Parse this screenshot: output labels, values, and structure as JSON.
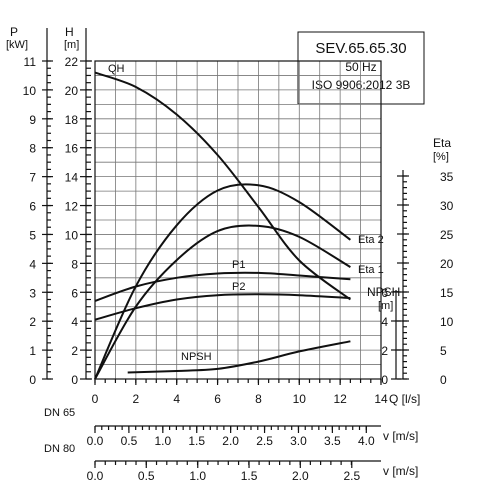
{
  "chart_data": {
    "type": "line",
    "title_box": {
      "model": "SEV.65.65.30",
      "frequency": "50 Hz",
      "standard": "ISO 9906:2012 3B"
    },
    "axes": {
      "x": {
        "label": "Q [l/s]",
        "range": [
          0,
          14
        ],
        "ticks": [
          "0",
          "2",
          "4",
          "6",
          "8",
          "10",
          "12",
          "14"
        ]
      },
      "H": {
        "label": "H",
        "unit": "[m]",
        "range": [
          0,
          22
        ],
        "ticks": [
          "0",
          "2",
          "4",
          "6",
          "8",
          "10",
          "12",
          "14",
          "16",
          "18",
          "20",
          "22"
        ]
      },
      "P": {
        "label": "P",
        "unit": "[kW]",
        "range": [
          0,
          11
        ],
        "ticks": [
          "0",
          "1",
          "2",
          "3",
          "4",
          "5",
          "6",
          "7",
          "8",
          "9",
          "10",
          "11"
        ]
      },
      "Eta": {
        "label": "Eta",
        "unit": "[%]",
        "range": [
          0,
          35
        ],
        "ticks": [
          "0",
          "5",
          "10",
          "15",
          "20",
          "25",
          "30",
          "35"
        ]
      },
      "NPSH": {
        "label": "NPSH",
        "unit": "[m]",
        "range": [
          0,
          6
        ],
        "ticks": [
          "0",
          "2",
          "4",
          "6"
        ]
      }
    },
    "grid": true,
    "series": [
      {
        "name": "QH",
        "axis": "H",
        "label": "QH",
        "x": [
          0,
          2,
          4,
          6,
          8,
          10,
          12.5
        ],
        "y": [
          21.2,
          20.2,
          18.3,
          15.5,
          11.9,
          8.2,
          5.5
        ]
      },
      {
        "name": "Eta 2",
        "axis": "Eta",
        "label": "Eta 2",
        "x": [
          0,
          2,
          4,
          6,
          8,
          10,
          12.5
        ],
        "y": [
          0,
          16,
          26.5,
          32.5,
          33.4,
          30.5,
          24
        ]
      },
      {
        "name": "Eta 1",
        "axis": "Eta",
        "label": "Eta 1",
        "x": [
          0,
          2,
          4,
          6,
          8,
          10,
          12.5
        ],
        "y": [
          0,
          12.5,
          20.5,
          25.5,
          26.4,
          24.5,
          19.3
        ]
      },
      {
        "name": "P1",
        "axis": "P",
        "label": "P1",
        "x": [
          0,
          2,
          4,
          6,
          8,
          10,
          12.5
        ],
        "y": [
          2.7,
          3.2,
          3.5,
          3.65,
          3.67,
          3.58,
          3.45
        ]
      },
      {
        "name": "P2",
        "axis": "P",
        "label": "P2",
        "x": [
          0,
          2,
          4,
          6,
          8,
          10,
          12.5
        ],
        "y": [
          2.05,
          2.45,
          2.75,
          2.9,
          2.93,
          2.9,
          2.8
        ]
      },
      {
        "name": "NPSH",
        "axis": "NPSH",
        "label": "NPSH",
        "x": [
          1.6,
          4,
          6,
          8,
          10,
          12.5
        ],
        "y": [
          0.45,
          0.55,
          0.7,
          1.2,
          1.9,
          2.6
        ]
      }
    ],
    "velocity_scales": [
      {
        "name": "DN 65",
        "unit": "v [m/s]",
        "values": [
          "0.0",
          "0.5",
          "1.0",
          "1.5",
          "2.0",
          "2.5",
          "3.0",
          "3.5",
          "4.0"
        ],
        "q_at": [
          0,
          1.66,
          3.32,
          4.98,
          6.64,
          8.3,
          9.96,
          11.62,
          13.28
        ]
      },
      {
        "name": "DN 80",
        "unit": "v [m/s]",
        "values": [
          "0.0",
          "0.5",
          "1.0",
          "1.5",
          "2.0",
          "2.5"
        ],
        "q_at": [
          0,
          2.51,
          5.03,
          7.54,
          10.05,
          12.57
        ]
      }
    ]
  }
}
